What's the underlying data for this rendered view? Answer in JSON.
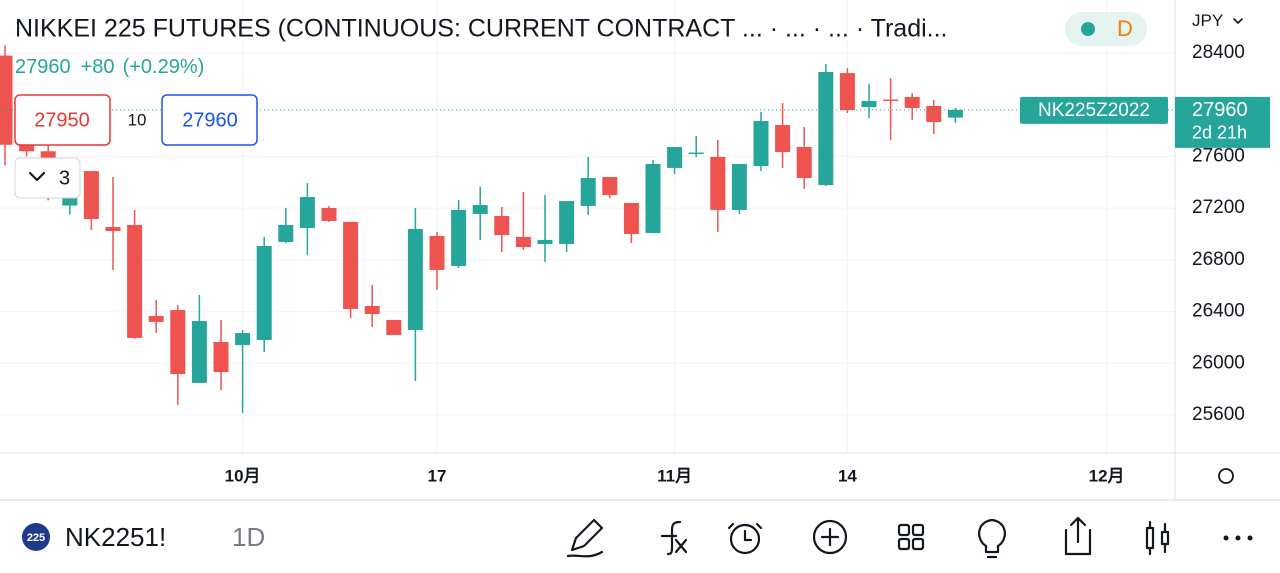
{
  "chart_data": {
    "type": "candlestick",
    "categories": [
      null,
      null,
      null,
      null,
      null,
      null,
      null,
      null,
      null,
      null,
      null,
      "10月",
      null,
      null,
      null,
      null,
      null,
      null,
      null,
      null,
      "17",
      null,
      null,
      null,
      null,
      null,
      null,
      null,
      null,
      null,
      null,
      "11月",
      null,
      null,
      null,
      null,
      null,
      null,
      null,
      "14",
      null,
      null,
      null,
      null,
      null,
      null,
      null,
      null,
      null,
      null,
      null,
      "12月"
    ],
    "open": [
      28380,
      27690,
      27640,
      27220,
      27487,
      27054,
      27070,
      26366,
      26412,
      25848,
      26165,
      26141,
      26180,
      26938,
      27046,
      27201,
      27093,
      26443,
      26335,
      26257,
      26985,
      26753,
      27155,
      27139,
      26977,
      26923,
      26923,
      27217,
      27441,
      27240,
      27008,
      27511,
      27620,
      27596,
      27186,
      27526,
      27843,
      27673,
      27379,
      28245,
      27982,
      28040,
      28060,
      27990,
      27900,
      null,
      null,
      null,
      null,
      null,
      null,
      null
    ],
    "high": [
      28460,
      27720,
      27720,
      27480,
      27487,
      27441,
      27186,
      26490,
      26451,
      26528,
      26335,
      26257,
      26977,
      27201,
      27394,
      27217,
      27093,
      26605,
      26335,
      27201,
      27015,
      27263,
      27364,
      27209,
      27325,
      27302,
      27255,
      27596,
      27441,
      27240,
      27572,
      27673,
      27758,
      27727,
      27542,
      27944,
      28013,
      27828,
      28315,
      28284,
      28160,
      28207,
      28090,
      28036,
      27975,
      null,
      null,
      null,
      null,
      null,
      null,
      null
    ],
    "low": [
      27530,
      27600,
      27260,
      27150,
      27031,
      26722,
      26190,
      26234,
      25677,
      25848,
      25793,
      25615,
      26087,
      26930,
      26838,
      27093,
      26350,
      26281,
      26219,
      25863,
      26567,
      26737,
      26954,
      26861,
      26876,
      26783,
      26861,
      27147,
      27279,
      26930,
      27008,
      27464,
      27596,
      27015,
      27155,
      27487,
      27511,
      27348,
      27371,
      27936,
      27897,
      27727,
      27882,
      27773,
      27860,
      null,
      null,
      null,
      null,
      null,
      null,
      null
    ],
    "close": [
      27690,
      27640,
      27340,
      27420,
      27116,
      27023,
      26196,
      26320,
      25917,
      26327,
      25932,
      26234,
      26907,
      27070,
      27286,
      27101,
      26420,
      26381,
      26219,
      27039,
      26722,
      27186,
      27224,
      26992,
      26899,
      26954,
      27255,
      27433,
      27302,
      27000,
      27542,
      27673,
      27630,
      27186,
      27542,
      27874,
      27634,
      27433,
      28253,
      27959,
      28029,
      28030,
      27975,
      27866,
      27960,
      null,
      null,
      null,
      null,
      null,
      null,
      null
    ],
    "up_color": "#26a69a",
    "down_color": "#ef5350",
    "ylim": [
      25306,
      28810
    ],
    "yticks": [
      25600,
      26000,
      26400,
      26800,
      27200,
      27600,
      28400
    ],
    "grid": true,
    "last_price": 27960,
    "price_label": {
      "symbol": "NK225Z2022",
      "countdown": "2d 21h"
    }
  },
  "header": {
    "title": "NIKKEI 225 FUTURES (CONTINUOUS: CURRENT CONTRACT ...  ·  ...    ·  ...    · Tradi...",
    "price": "27960",
    "change": "+80",
    "change_pct": "(+0.29%)",
    "bid": "27950",
    "spread": "10",
    "ask": "27960",
    "collapse_count": "3",
    "interval_badge": "D",
    "currency": "JPY"
  },
  "toolbar": {
    "logo": "225",
    "symbol": "NK2251!",
    "interval": "1D"
  }
}
